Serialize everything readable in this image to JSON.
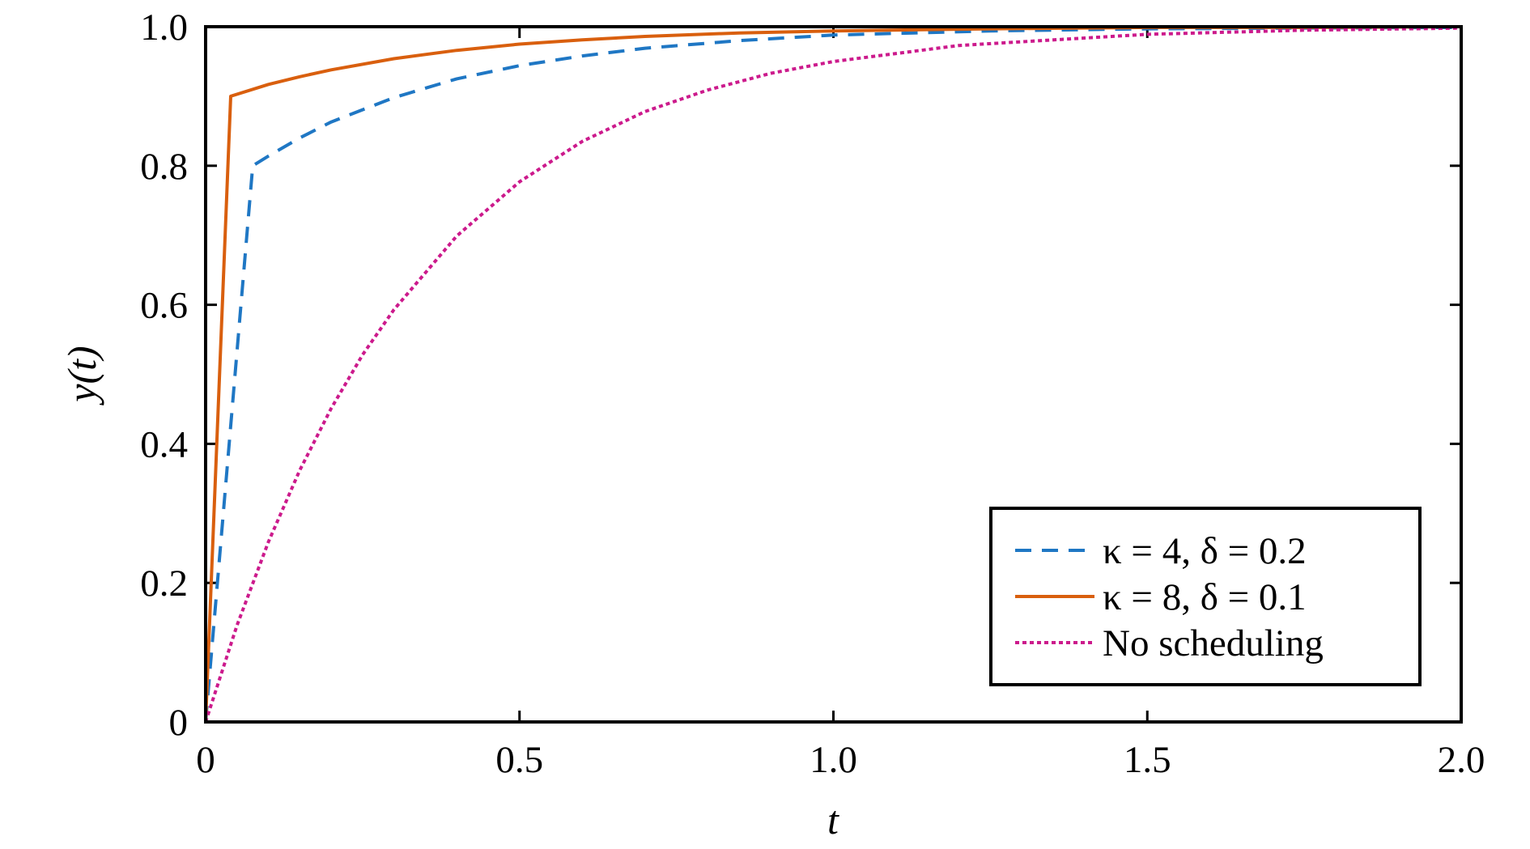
{
  "chart_data": {
    "type": "line",
    "title": "",
    "xlabel": "t",
    "ylabel": "y(t)",
    "xlim": [
      0,
      2
    ],
    "ylim": [
      0,
      1
    ],
    "xticks": [
      0,
      0.5,
      1,
      1.5,
      2
    ],
    "xtick_labels": [
      "0",
      "0.5",
      "1.0",
      "1.5",
      "2.0"
    ],
    "yticks": [
      0,
      0.2,
      0.4,
      0.6,
      0.8,
      1
    ],
    "ytick_labels": [
      "0",
      "0.2",
      "0.4",
      "0.6",
      "0.8",
      "1.0"
    ],
    "grid": false,
    "legend_position": "bottom-right",
    "series": [
      {
        "name": "κ = 4, δ = 0.2",
        "color": "#1f77c4",
        "style": "dashed",
        "x": [
          0,
          0.075,
          0.1,
          0.15,
          0.2,
          0.3,
          0.4,
          0.5,
          0.6,
          0.7,
          0.85,
          1.0,
          1.25,
          1.5,
          1.75,
          2.0
        ],
        "y": [
          0,
          0.8,
          0.814,
          0.84,
          0.863,
          0.898,
          0.925,
          0.944,
          0.958,
          0.969,
          0.98,
          0.988,
          0.994,
          0.997,
          0.998,
          0.999
        ]
      },
      {
        "name": "κ = 8, δ = 0.1",
        "color": "#d95f0e",
        "style": "solid",
        "x": [
          0,
          0.04,
          0.1,
          0.15,
          0.2,
          0.3,
          0.4,
          0.5,
          0.6,
          0.7,
          0.85,
          1.0,
          1.25,
          1.5,
          1.75,
          2.0
        ],
        "y": [
          0,
          0.9,
          0.917,
          0.928,
          0.938,
          0.954,
          0.966,
          0.975,
          0.981,
          0.986,
          0.991,
          0.994,
          0.997,
          0.999,
          0.999,
          1.0
        ]
      },
      {
        "name": "No scheduling",
        "color": "#cc1a8c",
        "style": "dotted",
        "x": [
          0,
          0.05,
          0.1,
          0.15,
          0.2,
          0.25,
          0.3,
          0.4,
          0.5,
          0.6,
          0.7,
          0.8,
          0.9,
          1.0,
          1.2,
          1.5,
          1.75,
          2.0
        ],
        "y": [
          0,
          0.139,
          0.259,
          0.362,
          0.451,
          0.528,
          0.593,
          0.699,
          0.777,
          0.835,
          0.878,
          0.909,
          0.933,
          0.95,
          0.973,
          0.989,
          0.995,
          0.998
        ]
      }
    ]
  }
}
